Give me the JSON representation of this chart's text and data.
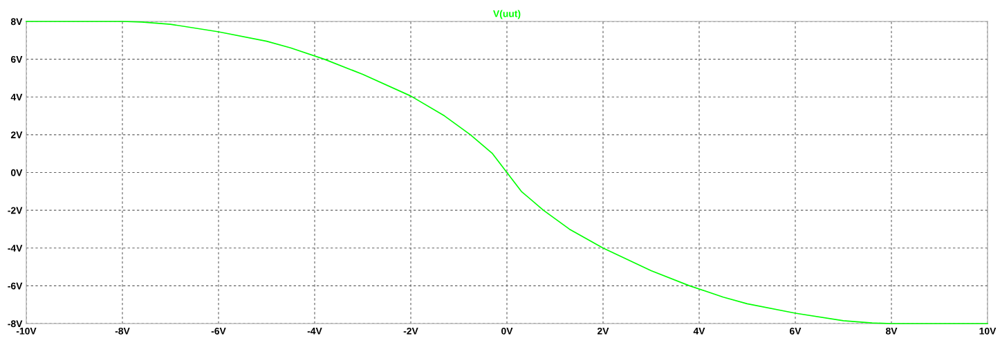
{
  "chart_data": {
    "type": "line",
    "legend": "top",
    "x": [
      -10,
      -8,
      -7.6,
      -7,
      -6,
      -5,
      -4.5,
      -3.8,
      -3,
      -2,
      -1.3,
      -0.76,
      -0.3,
      0,
      0.3,
      0.76,
      1.3,
      2,
      3,
      3.8,
      4.5,
      5,
      6,
      7,
      7.6,
      8,
      10
    ],
    "series": [
      {
        "name": "V(uut)",
        "color": "#00ff00",
        "values": [
          8,
          8,
          7.97,
          7.85,
          7.45,
          6.95,
          6.6,
          6,
          5.2,
          4.05,
          3,
          2,
          1,
          0,
          -1,
          -2,
          -3,
          -4,
          -5.2,
          -6,
          -6.6,
          -6.95,
          -7.45,
          -7.85,
          -7.97,
          -8,
          -8
        ]
      }
    ],
    "xlim": [
      -10,
      10
    ],
    "xticks": [
      {
        "value": -10,
        "label": "-10V"
      },
      {
        "value": -8,
        "label": "-8V"
      },
      {
        "value": -6,
        "label": "-6V"
      },
      {
        "value": -4,
        "label": "-4V"
      },
      {
        "value": -2,
        "label": "-2V"
      },
      {
        "value": 0,
        "label": "0V"
      },
      {
        "value": 2,
        "label": "2V"
      },
      {
        "value": 4,
        "label": "4V"
      },
      {
        "value": 6,
        "label": "6V"
      },
      {
        "value": 8,
        "label": "8V"
      },
      {
        "value": 10,
        "label": "10V"
      }
    ],
    "ylim": [
      -8,
      8
    ],
    "yticks": [
      {
        "value": -8,
        "label": "-8V"
      },
      {
        "value": -6,
        "label": "-6V"
      },
      {
        "value": -4,
        "label": "-4V"
      },
      {
        "value": -2,
        "label": "-2V"
      },
      {
        "value": 0,
        "label": "0V"
      },
      {
        "value": 2,
        "label": "2V"
      },
      {
        "value": 4,
        "label": "4V"
      },
      {
        "value": 6,
        "label": "6V"
      },
      {
        "value": 8,
        "label": "8V"
      }
    ],
    "grid": true,
    "line_style": "solid",
    "marker": "none"
  }
}
